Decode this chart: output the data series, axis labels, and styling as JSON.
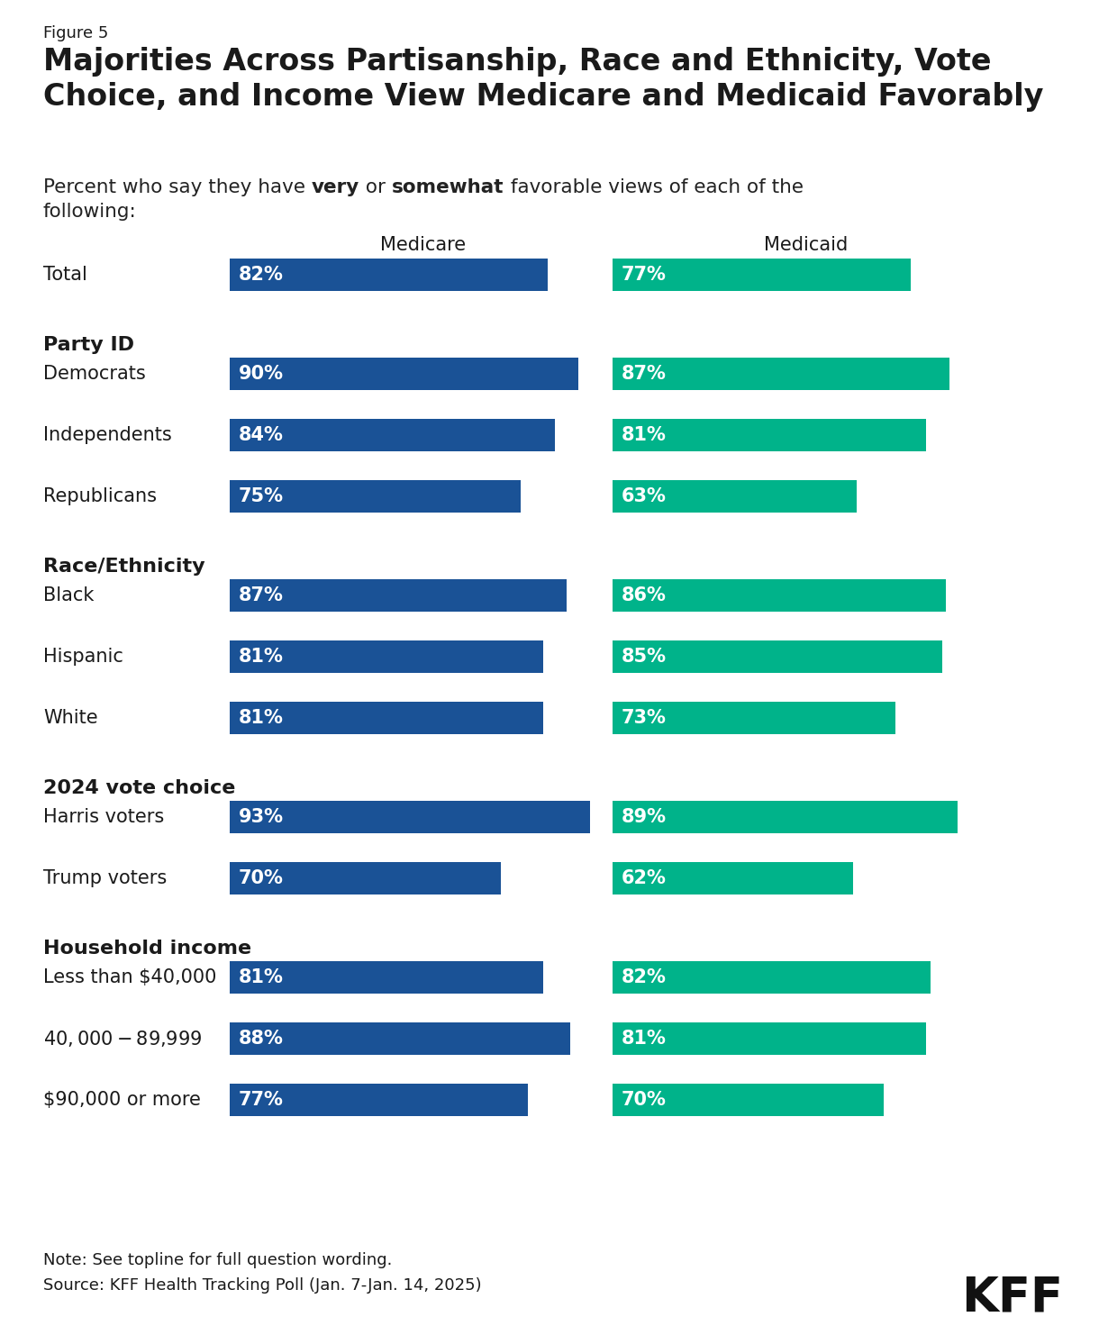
{
  "figure_label": "Figure 5",
  "title": "Majorities Across Partisanship, Race and Ethnicity, Vote\nChoice, and Income View Medicare and Medicaid Favorably",
  "col1_header": "Medicare",
  "col2_header": "Medicaid",
  "medicare_color": "#1a5296",
  "medicaid_color": "#00b38a",
  "bar_text_color": "#ffffff",
  "label_color": "#1a1a1a",
  "background_color": "#ffffff",
  "note": "Note: See topline for full question wording.",
  "source": "Source: KFF Health Tracking Poll (Jan. 7-Jan. 14, 2025)",
  "rows": [
    {
      "label": "Total",
      "is_header": false,
      "medicare": 82,
      "medicaid": 77
    },
    {
      "label": "Party ID",
      "is_header": true,
      "medicare": null,
      "medicaid": null
    },
    {
      "label": "Democrats",
      "is_header": false,
      "medicare": 90,
      "medicaid": 87
    },
    {
      "label": "Independents",
      "is_header": false,
      "medicare": 84,
      "medicaid": 81
    },
    {
      "label": "Republicans",
      "is_header": false,
      "medicare": 75,
      "medicaid": 63
    },
    {
      "label": "Race/Ethnicity",
      "is_header": true,
      "medicare": null,
      "medicaid": null
    },
    {
      "label": "Black",
      "is_header": false,
      "medicare": 87,
      "medicaid": 86
    },
    {
      "label": "Hispanic",
      "is_header": false,
      "medicare": 81,
      "medicaid": 85
    },
    {
      "label": "White",
      "is_header": false,
      "medicare": 81,
      "medicaid": 73
    },
    {
      "label": "2024 vote choice",
      "is_header": true,
      "medicare": null,
      "medicaid": null
    },
    {
      "label": "Harris voters",
      "is_header": false,
      "medicare": 93,
      "medicaid": 89
    },
    {
      "label": "Trump voters",
      "is_header": false,
      "medicare": 70,
      "medicaid": 62
    },
    {
      "label": "Household income",
      "is_header": true,
      "medicare": null,
      "medicaid": null
    },
    {
      "label": "Less than $40,000",
      "is_header": false,
      "medicare": 81,
      "medicaid": 82
    },
    {
      "label": "$40,000-$89,999",
      "is_header": false,
      "medicare": 88,
      "medicaid": 81
    },
    {
      "label": "$90,000 or more",
      "is_header": false,
      "medicare": 77,
      "medicaid": 70
    }
  ]
}
